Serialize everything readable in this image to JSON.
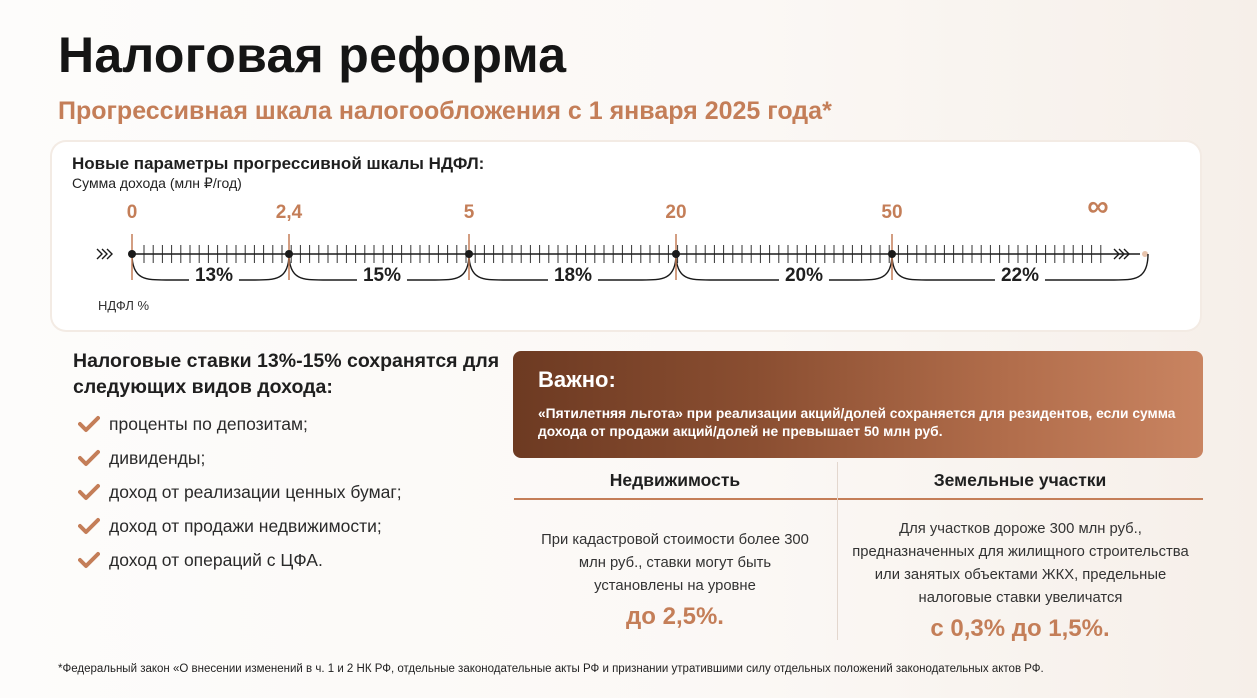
{
  "title": "Налоговая реформа",
  "subtitle": "Прогрессивная шкала налогообложения с 1 января 2025 года*",
  "scale": {
    "heading": "Новые параметры прогрессивной шкалы НДФЛ:",
    "unit": "Сумма дохода (млн ₽/год)",
    "thresholds": [
      "0",
      "2,4",
      "5",
      "20",
      "50",
      "∞"
    ],
    "rates": [
      "13%",
      "15%",
      "18%",
      "20%",
      "22%"
    ],
    "rate_axis_label": "НДФЛ %"
  },
  "income": {
    "heading": "Налоговые ставки 13%-15% сохранятся для следующих видов дохода:",
    "items": [
      "проценты по депозитам;",
      "дивиденды;",
      "доход от реализации ценных бумаг;",
      "доход от продажи недвижимости;",
      "доход от операций с ЦФА."
    ],
    "check_icon": "check-icon"
  },
  "important": {
    "title": "Важно:",
    "text": "«Пятилетняя льгота» при реализации акций/долей сохраняется для резидентов, если сумма дохода от продажи акций/долей не превышает 50 млн руб."
  },
  "columns": {
    "realty": {
      "heading": "Недвижимость",
      "text": "При кадастровой стоимости более 300 млн руб., ставки могут быть установлены на уровне",
      "value": "до 2,5%."
    },
    "land": {
      "heading": "Земельные участки",
      "text": "Для участков дороже 300 млн руб., предназначенных для жилищного строительства или занятых объектами ЖКХ, предельные налоговые ставки увеличатся",
      "value": "с 0,3% до 1,5%."
    }
  },
  "footnote": "*Федеральный закон «О внесении изменений в ч. 1 и 2 НК РФ, отдельные законодательные акты РФ и признании утратившими силу отдельных положений законодательных актов РФ.",
  "colors": {
    "accent": "#c47e58",
    "dark_brown": "#6d3a22",
    "text": "#1f1f1f"
  }
}
